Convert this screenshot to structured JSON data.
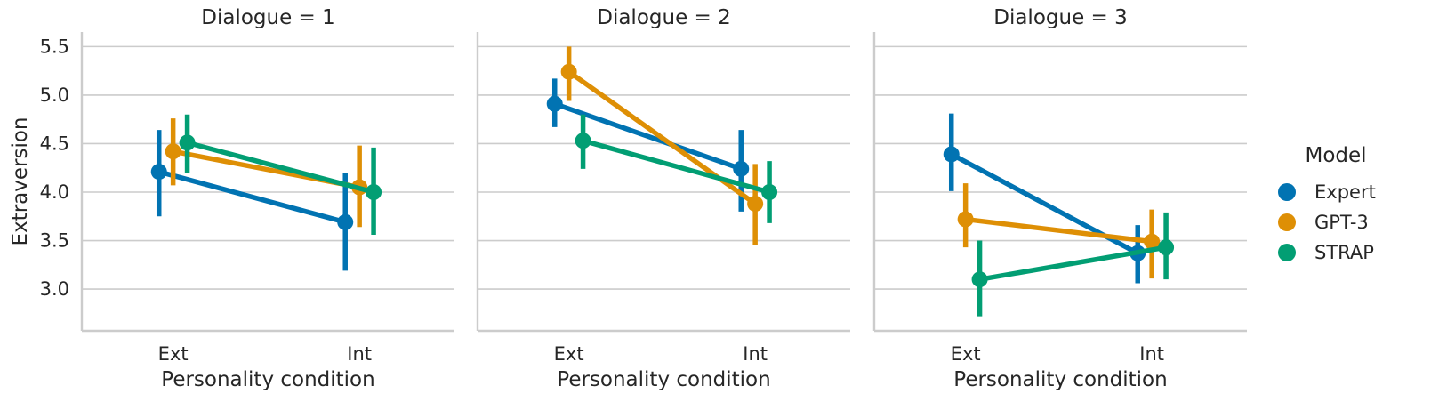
{
  "chart_data": {
    "type": "line",
    "ylabel": "Extraversion",
    "xlabel": "Personality condition",
    "categories": [
      "Ext",
      "Int"
    ],
    "ylim": [
      2.57,
      5.65
    ],
    "yticks": [
      "3.0",
      "3.5",
      "4.0",
      "4.5",
      "5.0",
      "5.5"
    ],
    "grid": "horizontal",
    "legend": {
      "title": "Model",
      "placement": "right",
      "entries": [
        "Expert",
        "GPT-3",
        "STRAP"
      ]
    },
    "colors": {
      "Expert": "#0173b2",
      "GPT-3": "#de8f05",
      "STRAP": "#029e73"
    },
    "panels": [
      {
        "title": "Dialogue = 1",
        "series": [
          {
            "name": "Expert",
            "values": [
              4.21,
              3.69
            ],
            "ci_low": [
              3.75,
              3.19
            ],
            "ci_high": [
              4.64,
              4.2
            ]
          },
          {
            "name": "GPT-3",
            "values": [
              4.42,
              4.05
            ],
            "ci_low": [
              4.07,
              3.64
            ],
            "ci_high": [
              4.76,
              4.48
            ]
          },
          {
            "name": "STRAP",
            "values": [
              4.51,
              4.0
            ],
            "ci_low": [
              4.2,
              3.56
            ],
            "ci_high": [
              4.8,
              4.46
            ]
          }
        ]
      },
      {
        "title": "Dialogue = 2",
        "series": [
          {
            "name": "Expert",
            "values": [
              4.91,
              4.24
            ],
            "ci_low": [
              4.67,
              3.8
            ],
            "ci_high": [
              5.17,
              4.64
            ]
          },
          {
            "name": "GPT-3",
            "values": [
              5.24,
              3.88
            ],
            "ci_low": [
              4.94,
              3.45
            ],
            "ci_high": [
              5.5,
              4.29
            ]
          },
          {
            "name": "STRAP",
            "values": [
              4.53,
              4.0
            ],
            "ci_low": [
              4.24,
              3.68
            ],
            "ci_high": [
              4.8,
              4.32
            ]
          }
        ]
      },
      {
        "title": "Dialogue = 3",
        "series": [
          {
            "name": "Expert",
            "values": [
              4.39,
              3.37
            ],
            "ci_low": [
              4.01,
              3.06
            ],
            "ci_high": [
              4.81,
              3.66
            ]
          },
          {
            "name": "GPT-3",
            "values": [
              3.72,
              3.49
            ],
            "ci_low": [
              3.43,
              3.11
            ],
            "ci_high": [
              4.09,
              3.82
            ]
          },
          {
            "name": "STRAP",
            "values": [
              3.1,
              3.43
            ],
            "ci_low": [
              2.72,
              3.1
            ],
            "ci_high": [
              3.5,
              3.79
            ]
          }
        ]
      }
    ]
  }
}
